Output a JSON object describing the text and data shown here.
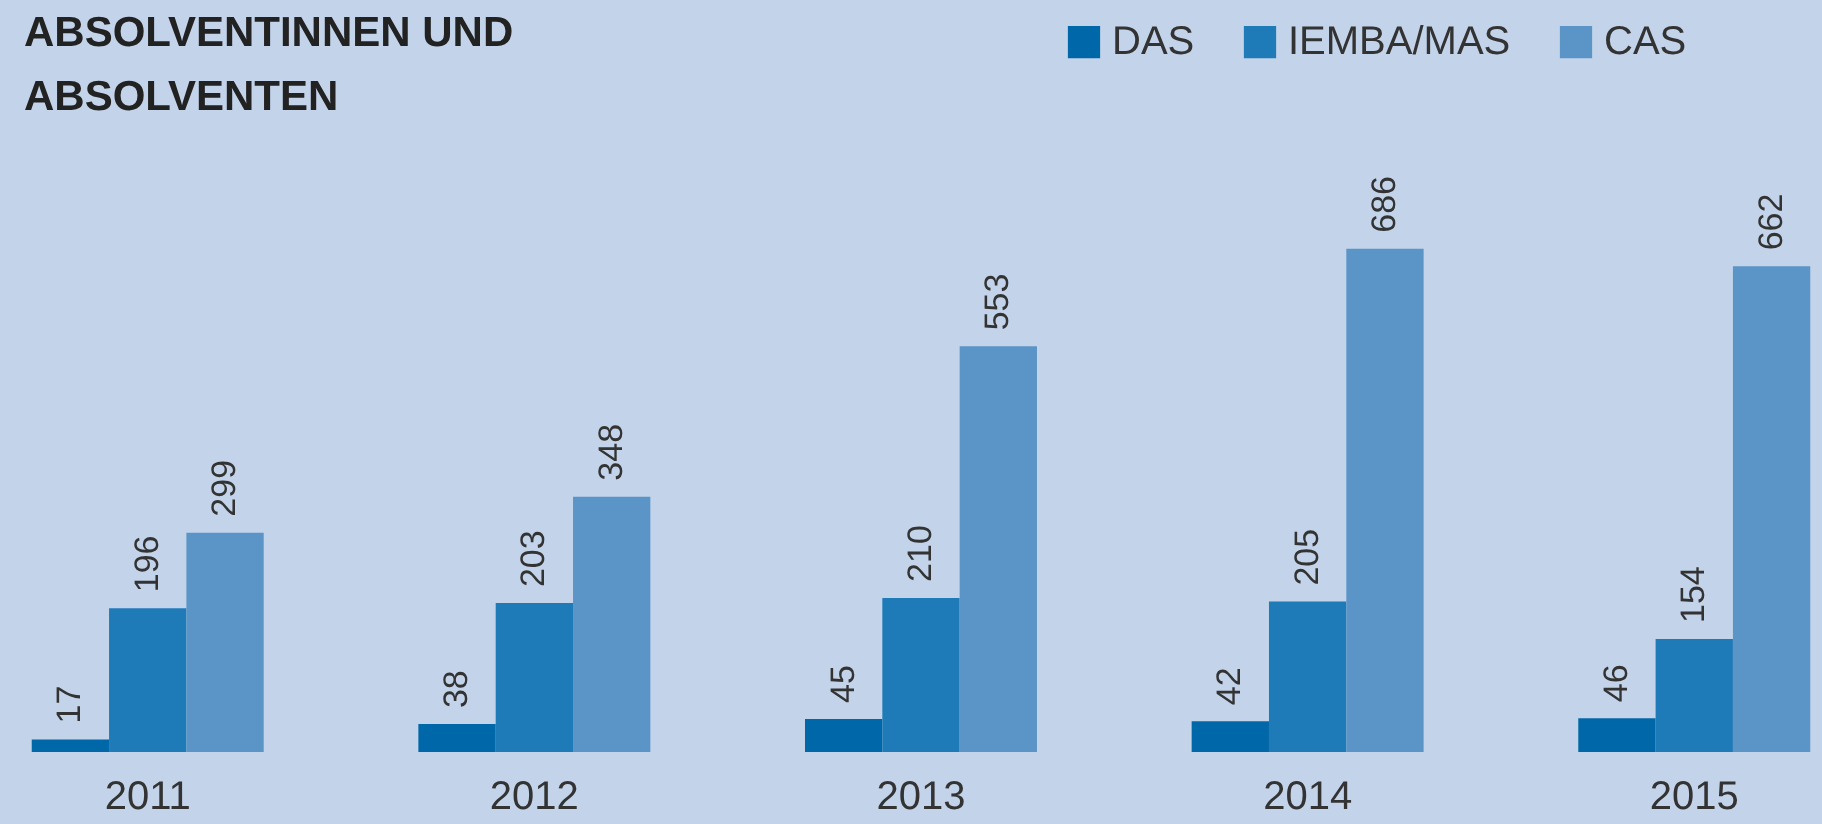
{
  "chart_data": {
    "type": "bar",
    "title": "ABSOLVENTINNEN UND ABSOLVENTEN",
    "categories": [
      "2011",
      "2012",
      "2013",
      "2014",
      "2015"
    ],
    "series": [
      {
        "name": "DAS",
        "color": "#0067a8",
        "values": [
          17,
          38,
          45,
          42,
          46
        ]
      },
      {
        "name": "IEMBA/MAS",
        "color": "#1f7ab8",
        "values": [
          196,
          203,
          210,
          205,
          154
        ]
      },
      {
        "name": "CAS",
        "color": "#5b95c8",
        "values": [
          299,
          348,
          553,
          686,
          662
        ]
      }
    ],
    "data_labels": true,
    "legend": "top right",
    "grid": false
  }
}
